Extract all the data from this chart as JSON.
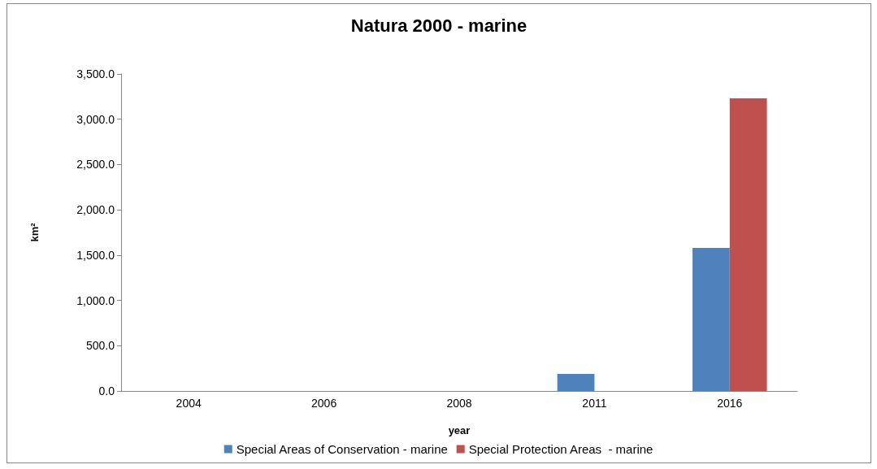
{
  "chart_data": {
    "type": "bar",
    "title": "Natura 2000 - marine",
    "xlabel": "year",
    "ylabel": "km²",
    "categories": [
      "2004",
      "2006",
      "2008",
      "2011",
      "2016"
    ],
    "series": [
      {
        "name": "Special Areas of Conservation - marine",
        "color": "#4f81bd",
        "values": [
          0,
          0,
          0,
          188,
          1580
        ]
      },
      {
        "name": "Special Protection Areas  - marine",
        "color": "#c0504d",
        "values": [
          0,
          0,
          0,
          0,
          3230
        ]
      }
    ],
    "ylim": [
      0,
      3500
    ],
    "yticks": [
      {
        "value": 0,
        "label": "0.0"
      },
      {
        "value": 500,
        "label": "500.0"
      },
      {
        "value": 1000,
        "label": "1,000.0"
      },
      {
        "value": 1500,
        "label": "1,500.0"
      },
      {
        "value": 2000,
        "label": "2,000.0"
      },
      {
        "value": 2500,
        "label": "2,500.0"
      },
      {
        "value": 3000,
        "label": "3,000.0"
      },
      {
        "value": 3500,
        "label": "3,500.0"
      }
    ],
    "grid": false,
    "legend": "bottom"
  }
}
